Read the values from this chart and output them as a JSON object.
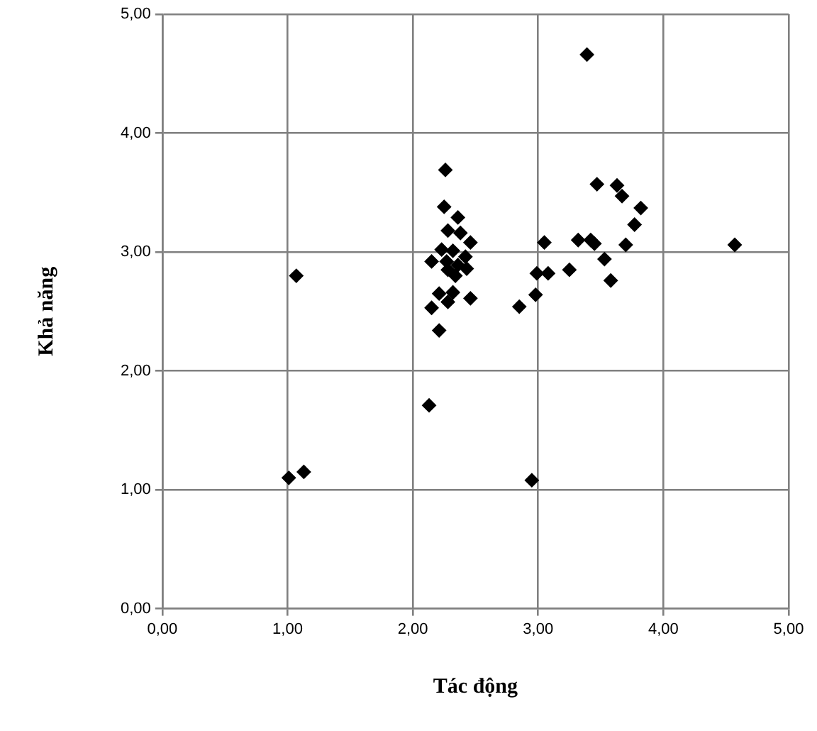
{
  "chart_data": {
    "type": "scatter",
    "xlabel": "Tác động",
    "ylabel": "Khả năng",
    "marker": "diamond",
    "grid": true,
    "legend": false,
    "xlim": [
      0,
      5
    ],
    "ylim": [
      0,
      5
    ],
    "xticks": [
      {
        "value": 0,
        "label": "0,00"
      },
      {
        "value": 1,
        "label": "1,00"
      },
      {
        "value": 2,
        "label": "2,00"
      },
      {
        "value": 3,
        "label": "3,00"
      },
      {
        "value": 4,
        "label": "4,00"
      },
      {
        "value": 5,
        "label": "5,00"
      }
    ],
    "yticks": [
      {
        "value": 0,
        "label": "0,00"
      },
      {
        "value": 1,
        "label": "1,00"
      },
      {
        "value": 2,
        "label": "2,00"
      },
      {
        "value": 3,
        "label": "3,00"
      },
      {
        "value": 4,
        "label": "4,00"
      },
      {
        "value": 5,
        "label": "5,00"
      }
    ],
    "series": [
      {
        "color": "#000000",
        "x": [
          1.01,
          1.13,
          1.07,
          2.13,
          2.95,
          4.57,
          3.39,
          2.26,
          2.25,
          2.36,
          2.28,
          2.38,
          2.46,
          2.23,
          2.32,
          2.42,
          2.15,
          2.27,
          2.36,
          2.28,
          2.34,
          2.21,
          2.32,
          2.46,
          2.28,
          2.15,
          2.21,
          2.43,
          3.47,
          3.63,
          3.67,
          3.82,
          3.77,
          3.05,
          3.32,
          3.42,
          3.45,
          3.7,
          3.53,
          2.99,
          3.08,
          3.25,
          3.58,
          2.98,
          2.85
        ],
        "values": [
          1.1,
          1.15,
          2.8,
          1.71,
          1.08,
          3.06,
          4.66,
          3.69,
          3.38,
          3.29,
          3.18,
          3.16,
          3.08,
          3.02,
          3.01,
          2.96,
          2.92,
          2.92,
          2.89,
          2.85,
          2.8,
          2.65,
          2.66,
          2.61,
          2.58,
          2.53,
          2.34,
          2.86,
          3.57,
          3.56,
          3.47,
          3.37,
          3.23,
          3.08,
          3.1,
          3.1,
          3.07,
          3.06,
          2.94,
          2.82,
          2.82,
          2.85,
          2.76,
          2.64,
          2.54
        ]
      }
    ]
  }
}
